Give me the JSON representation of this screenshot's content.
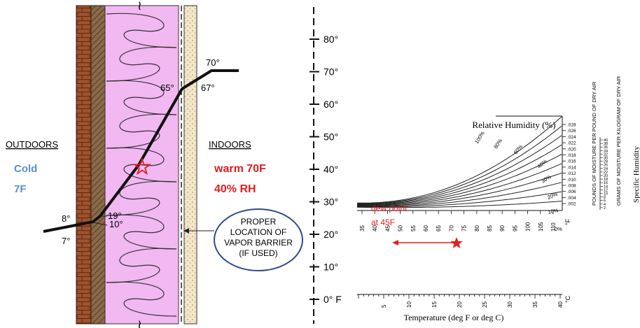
{
  "wall": {
    "outdoors_label": "OUTDOORS",
    "outdoors_cond_1": "Cold",
    "outdoors_cond_2": "7F",
    "indoors_label": "INDOORS",
    "indoors_cond_1": "warm 70F",
    "indoors_cond_2": "40% RH",
    "point_labels": {
      "t70": "70°",
      "t67": "67°",
      "t65": "65°",
      "t19": "19°",
      "t10": "10°",
      "t8": "8°",
      "t7": "7°"
    },
    "vapor_callout": [
      "PROPER",
      "LOCATION OF",
      "VAPOR BARRIER",
      "(IF USED)"
    ],
    "break_mark": "≀",
    "scale_ticks": [
      "80°",
      "70°",
      "60°",
      "50°",
      "40°",
      "30°",
      "20°",
      "10°",
      "0° F"
    ],
    "colors": {
      "brick": "#a0522d",
      "sheathing": "#8b6a47",
      "insulation": "#f2b8f2",
      "drywall": "#f4e6c8",
      "cold_text": "#5b8fcf",
      "warm_text": "#e02020",
      "callout_border": "#2e4b8c"
    }
  },
  "psychro": {
    "title": "Relative Humidity (%)",
    "rh_labels": [
      "100%",
      "80%",
      "60%",
      "40%",
      "30%",
      "20%",
      "10%",
      "0%"
    ],
    "right_axis_label_1": "POUNDS OF MOISTURE PER POUND OF DRY AIR",
    "right_axis_label_2": "GRAMS OF MOISTURE PER KILOGRAM OF DRY AIR",
    "right_axis_ticks_lb": [
      ".028",
      ".026",
      ".024",
      ".022",
      ".020",
      ".018",
      ".016",
      ".014",
      ".012",
      ".010",
      ".008",
      ".006",
      ".004",
      ".002"
    ],
    "right_axis_ticks_g": [
      "40",
      "38",
      "36",
      "34",
      "32",
      "30",
      "28",
      "26",
      "24",
      "22",
      "20",
      "18",
      "16",
      "14",
      "12",
      "10",
      "8",
      "6",
      "4",
      "2"
    ],
    "specific_humidity_label": "Specific Humidity",
    "x_ticks_f": [
      "35",
      "40",
      "45",
      "50",
      "55",
      "60",
      "65",
      "70",
      "75",
      "80",
      "85",
      "90",
      "95",
      "100",
      "105",
      "110"
    ],
    "x_unit_f": "°F",
    "x_ticks_c": [
      "5",
      "10",
      "15",
      "20",
      "25",
      "30",
      "35",
      "40"
    ],
    "x_unit_c": "°C",
    "x_label": "Temperature (deg F or deg C)",
    "dew_1": "dew point",
    "dew_2": "at 45F",
    "marker_color": "#e02020"
  }
}
